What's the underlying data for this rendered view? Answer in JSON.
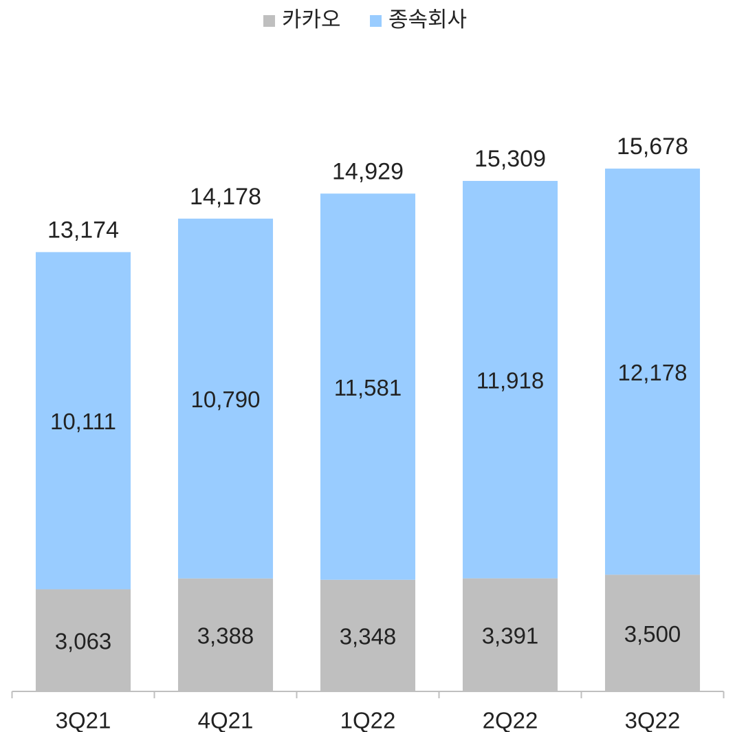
{
  "chart_data": {
    "type": "stacked-bar",
    "categories": [
      "3Q21",
      "4Q21",
      "1Q22",
      "2Q22",
      "3Q22"
    ],
    "series": [
      {
        "name": "카카오",
        "color": "#bfbfbf",
        "values": [
          3063,
          3388,
          3348,
          3391,
          3500
        ],
        "value_labels": [
          "3,063",
          "3,388",
          "3,348",
          "3,391",
          "3,500"
        ]
      },
      {
        "name": "종속회사",
        "color": "#99ccff",
        "values": [
          10111,
          10790,
          11581,
          11918,
          12178
        ],
        "value_labels": [
          "10,111",
          "10,790",
          "11,581",
          "11,918",
          "12,178"
        ]
      }
    ],
    "totals": {
      "values": [
        13174,
        14178,
        14929,
        15309,
        15678
      ],
      "value_labels": [
        "13,174",
        "14,178",
        "14,929",
        "15,309",
        "15,678"
      ]
    },
    "ylim": [
      0,
      17000
    ],
    "legend": "top"
  }
}
